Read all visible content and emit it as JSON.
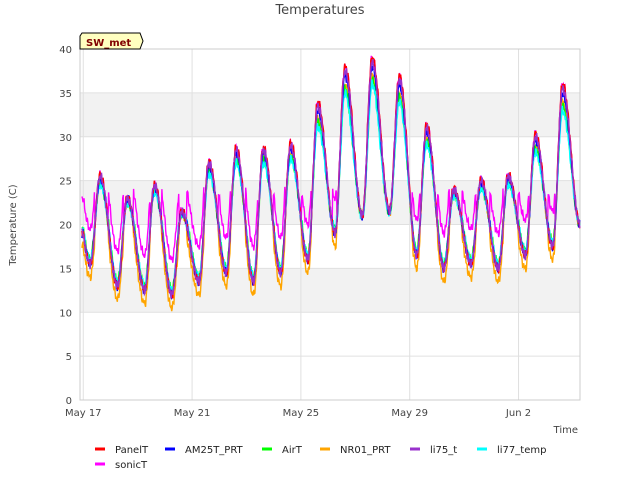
{
  "chart_data": {
    "type": "line",
    "title": "Temperatures",
    "xlabel": "Time",
    "ylabel": "Temperature (C)",
    "site_label": "SW_met",
    "ylim": [
      0,
      40
    ],
    "xlim": [
      0,
      18
    ],
    "x_tick_labels": [
      {
        "label": "May 17",
        "day": 0
      },
      {
        "label": "May 21",
        "day": 4
      },
      {
        "label": "May 25",
        "day": 8
      },
      {
        "label": "May 29",
        "day": 12
      },
      {
        "label": "Jun 2",
        "day": 16
      }
    ],
    "y_ticks": [
      0,
      5,
      10,
      15,
      20,
      25,
      30,
      35,
      40
    ],
    "grid": true,
    "shaded_bands": [
      [
        10,
        15
      ],
      [
        20,
        25
      ],
      [
        30,
        35
      ],
      [
        40,
        45
      ]
    ],
    "legend_position": "bottom",
    "daily": [
      {
        "day": 0,
        "min": 15.5,
        "max": 25.5
      },
      {
        "day": 1,
        "min": 13.0,
        "max": 23.0
      },
      {
        "day": 2,
        "min": 12.5,
        "max": 24.5
      },
      {
        "day": 3,
        "min": 12.0,
        "max": 21.5
      },
      {
        "day": 4,
        "min": 13.5,
        "max": 27.0
      },
      {
        "day": 5,
        "min": 14.5,
        "max": 28.5
      },
      {
        "day": 6,
        "min": 13.5,
        "max": 28.5
      },
      {
        "day": 7,
        "min": 14.5,
        "max": 29.0
      },
      {
        "day": 8,
        "min": 16.0,
        "max": 33.5
      },
      {
        "day": 9,
        "min": 19.0,
        "max": 37.5
      },
      {
        "day": 10,
        "min": 21.0,
        "max": 38.5
      },
      {
        "day": 11,
        "min": 21.5,
        "max": 36.5
      },
      {
        "day": 12,
        "min": 16.5,
        "max": 31.0
      },
      {
        "day": 13,
        "min": 15.0,
        "max": 24.0
      },
      {
        "day": 14,
        "min": 15.5,
        "max": 25.0
      },
      {
        "day": 15,
        "min": 15.0,
        "max": 25.5
      },
      {
        "day": 16,
        "min": 16.5,
        "max": 30.0
      },
      {
        "day": 17,
        "min": 17.5,
        "max": 35.5
      },
      {
        "day": 18,
        "min": 20.0,
        "max": 25.0
      }
    ],
    "series": [
      {
        "name": "PanelT",
        "color": "#ff0000",
        "offset_min": 0.0,
        "offset_max": 0.5
      },
      {
        "name": "AM25T_PRT",
        "color": "#0000ff",
        "offset_min": 0.0,
        "offset_max": -0.5
      },
      {
        "name": "AirT",
        "color": "#00ff00",
        "offset_min": 0.5,
        "offset_max": -2.0
      },
      {
        "name": "NR01_PRT",
        "color": "#ffa500",
        "offset_min": -1.5,
        "offset_max": -1.5
      },
      {
        "name": "li75_t",
        "color": "#9932cc",
        "offset_min": 0.0,
        "offset_max": 0.0
      },
      {
        "name": "li77_temp",
        "color": "#00ffff",
        "offset_min": 0.5,
        "offset_max": -2.5
      },
      {
        "name": "sonicT",
        "color": "#ff00ff",
        "offset_min": 4.0,
        "offset_max": 0.5
      }
    ]
  }
}
